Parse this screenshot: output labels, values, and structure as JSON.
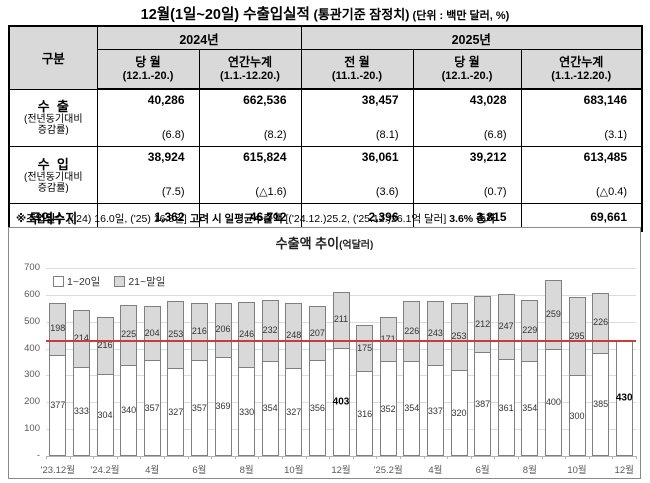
{
  "title": {
    "main": "12월(1일~20일) 수출입실적",
    "sub": " (통관기준 잠정치)",
    "unit": "  (단위 : 백만 달러, %)"
  },
  "table": {
    "corner_label": "구분",
    "year_groups": [
      {
        "label": "2024년",
        "span": 2
      },
      {
        "label": "2025년",
        "span": 3
      }
    ],
    "columns": [
      {
        "title": "당 월",
        "period": "(12.1.-20.)"
      },
      {
        "title": "연간누계",
        "period": "(1.1.-12.20.)"
      },
      {
        "title": "전 월",
        "period": "(11.1.-20.)"
      },
      {
        "title": "당 월",
        "period": "(12.1.-20.)"
      },
      {
        "title": "연간누계",
        "period": "(1.1.-12.20.)"
      }
    ],
    "rows": [
      {
        "label": "수  출",
        "sublabel1": "(전년동기대비",
        "sublabel2": "증감률)",
        "values": [
          "40,286",
          "662,536",
          "38,457",
          "43,028",
          "683,146"
        ],
        "rates": [
          "(6.8)",
          "(8.2)",
          "(8.1)",
          "(6.8)",
          "(3.1)"
        ]
      },
      {
        "label": "수  입",
        "sublabel1": "(전년동기대비",
        "sublabel2": "증감률)",
        "values": [
          "38,924",
          "615,824",
          "36,061",
          "39,212",
          "613,485"
        ],
        "rates": [
          "(7.5)",
          "(△1.6)",
          "(3.6)",
          "(0.7)",
          "(△0.4)"
        ]
      },
      {
        "label": "무역수지",
        "values": [
          "1,362",
          "46,712",
          "2,396",
          "3,815",
          "69,661"
        ]
      }
    ]
  },
  "note": {
    "segments": [
      {
        "text": "※조업일수 ",
        "bold": true
      },
      {
        "text": "[('24) 16.0일, ('25) 16.5일] ",
        "bold": false
      },
      {
        "text": "고려 시 일평균수출액 ",
        "bold": true
      },
      {
        "text": "[('24.12.)25.2, ('25.12.)26.1억 달러] ",
        "bold": false
      },
      {
        "text": "3.6% 증가",
        "bold": true
      }
    ]
  },
  "chart_data": {
    "type": "bar",
    "stacked": true,
    "title": "수출액 추이",
    "unit_label": "(억달러)",
    "legend": [
      "1~20일",
      "21~말일"
    ],
    "legend_position": "top-left-inside",
    "ylim": [
      0,
      700
    ],
    "ytick_step": 100,
    "ytick_zero_label": "-",
    "grid": true,
    "reference_line": {
      "value": 430,
      "color": "#cc3b3b"
    },
    "x_tick_labels": [
      "'23.12월",
      "'24.2월",
      "4월",
      "6월",
      "8월",
      "10월",
      "12월",
      "'25.2월",
      "4월",
      "6월",
      "8월",
      "10월",
      "12월"
    ],
    "x_tick_every": 2,
    "series": [
      {
        "name": "1~20일",
        "values": [
          377,
          333,
          304,
          340,
          357,
          327,
          357,
          369,
          330,
          354,
          327,
          356,
          403,
          316,
          352,
          354,
          337,
          320,
          387,
          361,
          354,
          400,
          300,
          385,
          430
        ]
      },
      {
        "name": "21~말일",
        "values": [
          198,
          214,
          216,
          225,
          204,
          253,
          216,
          206,
          246,
          232,
          248,
          207,
          211,
          175,
          171,
          226,
          243,
          253,
          212,
          247,
          229,
          259,
          295,
          226,
          null
        ]
      }
    ],
    "bold_value_indices": [
      12,
      24
    ],
    "colors": {
      "series1_fill": "#ffffff",
      "series2_fill": "#d9d9d9",
      "bar_border": "#7f7f7f",
      "label_color": "#333333"
    }
  }
}
